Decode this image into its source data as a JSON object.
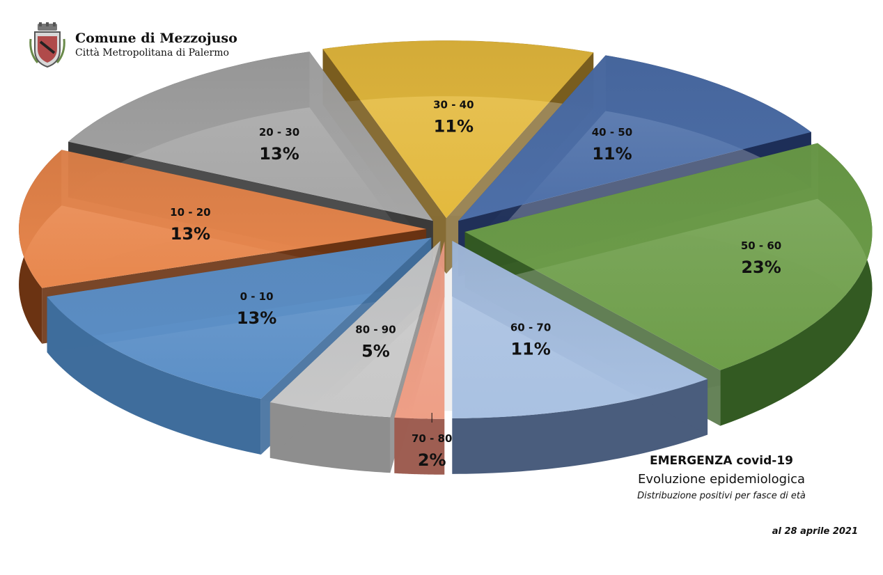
{
  "header": {
    "org_name": "Comune di Mezzojuso",
    "org_subtitle": "Città Metropolitana di Palermo"
  },
  "caption": {
    "title": "EMERGENZA covid-19",
    "subtitle": "Evoluzione epidemiologica",
    "description": "Distribuzione positivi per fasce di età",
    "date": "al 28 aprile 2021"
  },
  "chart_data": {
    "type": "pie",
    "style": "3d-exploded",
    "categories": [
      "0 - 10",
      "10 - 20",
      "20 - 30",
      "30 - 40",
      "40 - 50",
      "50 - 60",
      "60 - 70",
      "70 - 80",
      "80 - 90"
    ],
    "values": [
      13,
      13,
      13,
      11,
      11,
      23,
      11,
      2,
      5
    ],
    "value_labels": [
      "13%",
      "13%",
      "13%",
      "11%",
      "11%",
      "23%",
      "11%",
      "2%",
      "5%"
    ],
    "colors": [
      "#5b8fc7",
      "#e8874d",
      "#a6a6a6",
      "#e3b93d",
      "#4d6fa8",
      "#6e9e4a",
      "#a9c1e2",
      "#ee9f86",
      "#c8c8c8"
    ],
    "side_colors": [
      "#3f6d9c",
      "#6b3312",
      "#3a3a3a",
      "#7a5d1f",
      "#1e2f58",
      "#335a22",
      "#4a5d7d",
      "#9e5e52",
      "#8e8e8e"
    ]
  }
}
